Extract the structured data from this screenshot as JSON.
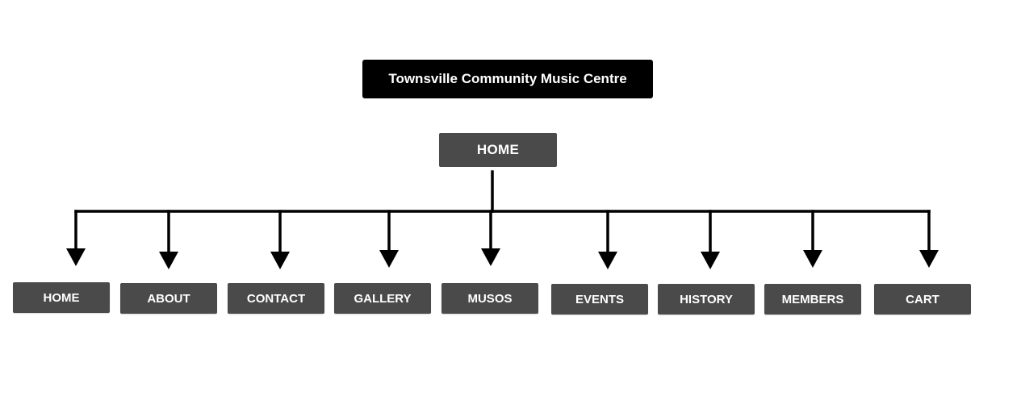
{
  "site_title": "Townsville Community Music Centre",
  "root": {
    "label": "HOME"
  },
  "children": [
    {
      "label": "HOME"
    },
    {
      "label": "ABOUT"
    },
    {
      "label": "CONTACT"
    },
    {
      "label": "GALLERY"
    },
    {
      "label": "MUSOS"
    },
    {
      "label": "EVENTS"
    },
    {
      "label": "HISTORY"
    },
    {
      "label": "MEMBERS"
    },
    {
      "label": "CART"
    }
  ],
  "colors": {
    "title_bg": "#000000",
    "node_bg": "#4a4a4a",
    "node_text": "#ffffff",
    "connector": "#000000"
  }
}
